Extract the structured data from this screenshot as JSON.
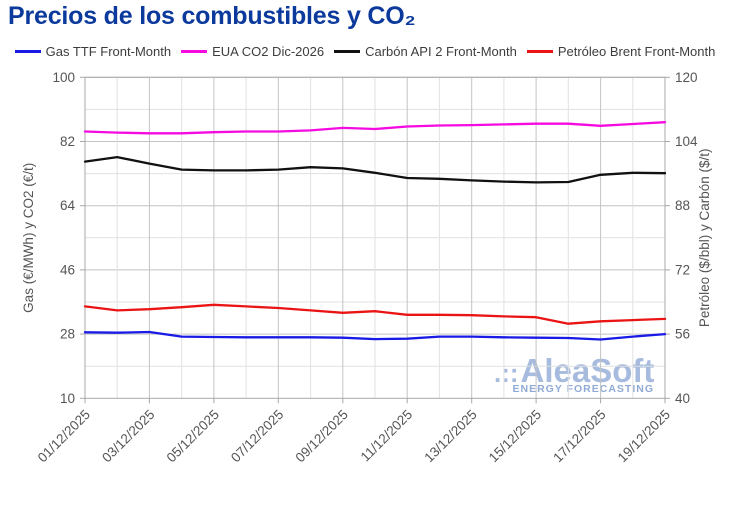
{
  "title": "Precios de los combustibles y CO₂",
  "watermark": {
    "logo_dots": ".::",
    "name": "AleaSoft",
    "tagline": "ENERGY FORECASTING",
    "color": "#9db4da"
  },
  "chart_data": {
    "type": "line",
    "title": "Precios de los combustibles y CO₂",
    "grid": true,
    "legend_position": "top",
    "x_dates": [
      "01/12/2025",
      "02/12/2025",
      "03/12/2025",
      "04/12/2025",
      "05/12/2025",
      "06/12/2025",
      "07/12/2025",
      "08/12/2025",
      "09/12/2025",
      "10/12/2025",
      "11/12/2025",
      "12/12/2025",
      "13/12/2025",
      "14/12/2025",
      "15/12/2025",
      "16/12/2025",
      "17/12/2025",
      "18/12/2025",
      "19/12/2025"
    ],
    "x_tick_labels": [
      "01/12/2025",
      "03/12/2025",
      "05/12/2025",
      "07/12/2025",
      "09/12/2025",
      "11/12/2025",
      "13/12/2025",
      "15/12/2025",
      "17/12/2025",
      "19/12/2025"
    ],
    "axes": {
      "left": {
        "label": "Gas (€/MWh) y CO2 (€/t)",
        "min": 10,
        "max": 100,
        "ticks": [
          10,
          28,
          46,
          64,
          82,
          100
        ],
        "minor_step": 9
      },
      "right": {
        "label": "Petróleo ($/bbl) y Carbón ($/t)",
        "min": 40,
        "max": 120,
        "ticks": [
          40,
          56,
          72,
          88,
          104,
          120
        ],
        "minor_step": 8
      }
    },
    "series": [
      {
        "id": "gas-ttf",
        "name": "Gas TTF Front-Month",
        "axis": "left",
        "unit": "€/MWh",
        "color": "#1a1ae6",
        "values": [
          28.5,
          28.4,
          28.6,
          27.3,
          27.2,
          27.1,
          27.1,
          27.1,
          27.0,
          26.6,
          26.7,
          27.3,
          27.3,
          27.1,
          27.0,
          26.9,
          26.5,
          27.3,
          28.0
        ]
      },
      {
        "id": "eua-co2",
        "name": "EUA CO2 Dic-2026",
        "axis": "left",
        "unit": "€/t",
        "color": "#f50ae1",
        "values": [
          84.8,
          84.5,
          84.3,
          84.3,
          84.6,
          84.8,
          84.8,
          85.1,
          85.8,
          85.5,
          86.2,
          86.5,
          86.6,
          86.8,
          87.0,
          87.0,
          86.4,
          86.9,
          87.4
        ]
      },
      {
        "id": "carbon-api2",
        "name": "Carbón API 2 Front-Month",
        "axis": "right",
        "unit": "$/t",
        "color": "#111111",
        "values": [
          99.0,
          100.1,
          98.5,
          97.0,
          96.8,
          96.8,
          97.0,
          97.6,
          97.3,
          96.2,
          94.9,
          94.7,
          94.3,
          94.0,
          93.8,
          93.9,
          95.7,
          96.2,
          96.1
        ]
      },
      {
        "id": "brent",
        "name": "Petróleo Brent Front-Month",
        "axis": "right",
        "unit": "$/bbl",
        "color": "#ea1414",
        "values": [
          62.9,
          61.9,
          62.2,
          62.7,
          63.3,
          62.9,
          62.5,
          61.9,
          61.3,
          61.7,
          60.8,
          60.8,
          60.7,
          60.4,
          60.2,
          58.6,
          59.2,
          59.5,
          59.8
        ]
      }
    ],
    "colors": {
      "grid_major": "#c3c3c3",
      "grid_minor": "#e1e1e1",
      "axis_border": "#a8a8a8",
      "title_blue": "#0b3a9c"
    }
  }
}
